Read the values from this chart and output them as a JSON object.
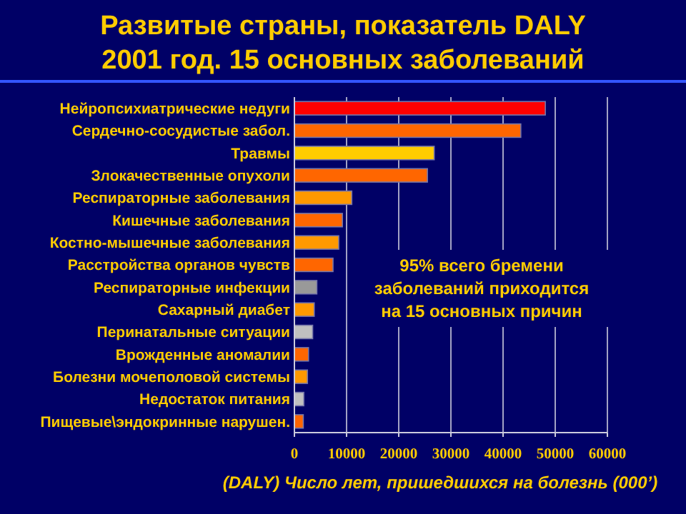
{
  "chart_data": {
    "type": "bar",
    "orientation": "horizontal",
    "title": "Развитые страны, показатель DALY\n2001 год.  15 основных заболеваний",
    "xlabel": "(DALY) Число лет, пришедшихся на болезнь (000’)",
    "categories": [
      "Нейропсихиатрические недуги",
      "Сердечно-сосудистые забол.",
      "Травмы",
      "Злокачественные опухоли",
      "Респираторные заболевания",
      "Кишечные заболевания",
      "Костно-мышечные заболевания",
      "Расстройства органов чувств",
      "Респираторные инфекции",
      "Сахарный диабет",
      "Перинатальные ситуации",
      "Врожденные аномалии",
      "Болезни мочеполовой системы",
      "Недостаток питания",
      "Пищевые\\эндокринные нарушен."
    ],
    "values": [
      48100,
      43400,
      26800,
      25500,
      11000,
      9200,
      8500,
      7400,
      4300,
      3800,
      3500,
      2700,
      2500,
      1800,
      1700
    ],
    "colors": [
      "#ff0000",
      "#ff6600",
      "#ffcc00",
      "#ff6600",
      "#ff9900",
      "#ff6600",
      "#ff9900",
      "#ff6600",
      "#999999",
      "#ff9900",
      "#c0c0c0",
      "#ff6600",
      "#ff9900",
      "#c0c0c0",
      "#ff6600"
    ],
    "xlim": [
      0,
      60000
    ],
    "xticks": [
      0,
      10000,
      20000,
      30000,
      40000,
      50000,
      60000
    ],
    "grid": "x",
    "annotations": [
      "95% всего бремени\nзаболеваний приходится\nна 15 основных причин"
    ]
  }
}
